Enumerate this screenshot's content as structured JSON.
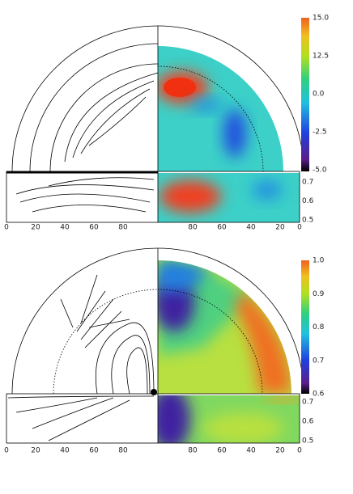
{
  "panels": [
    {
      "colorbar_ticks": [
        "15.0",
        "12.5",
        "0.0",
        "-2.5",
        "-5.0"
      ],
      "radial_ticks": [
        "0.7",
        "0.6",
        "0.5"
      ],
      "x_ticks": [
        "0",
        "20",
        "40",
        "60",
        "80",
        "80",
        "60",
        "40",
        "20",
        "0"
      ]
    },
    {
      "colorbar_ticks": [
        "1.0",
        "0.9",
        "0.8",
        "0.7",
        "0.6"
      ],
      "radial_ticks": [
        "0.7",
        "0.6",
        "0.5"
      ],
      "x_ticks": [
        "0",
        "20",
        "40",
        "60",
        "80",
        "80",
        "60",
        "40",
        "20",
        "0"
      ]
    }
  ]
}
